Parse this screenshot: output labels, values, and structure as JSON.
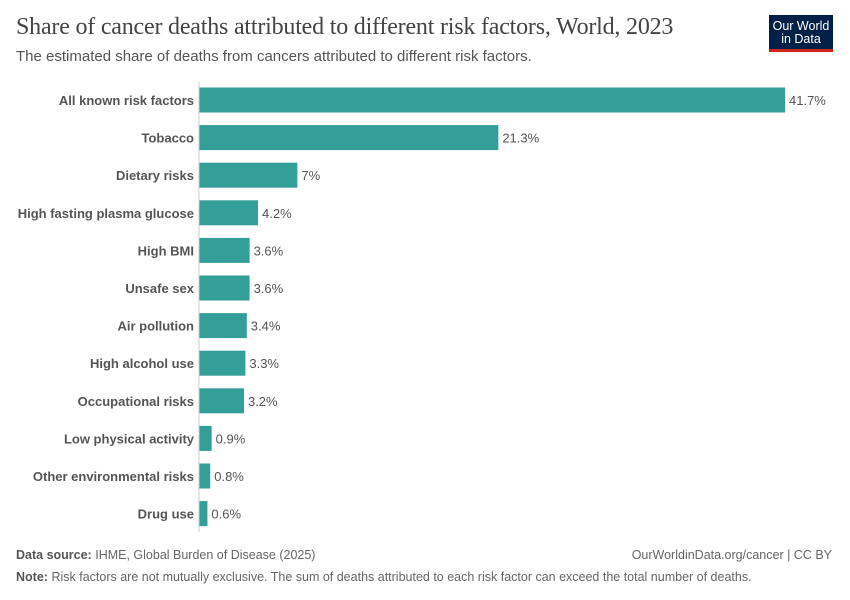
{
  "header": {
    "title": "Share of cancer deaths attributed to different risk factors, World, 2023",
    "subtitle": "The estimated share of deaths from cancers attributed to different risk factors.",
    "logo": "Our World in Data"
  },
  "chart_data": {
    "type": "bar",
    "orientation": "horizontal",
    "title": "Share of cancer deaths attributed to different risk factors, World, 2023",
    "categories": [
      "All known risk factors",
      "Tobacco",
      "Dietary risks",
      "High fasting plasma glucose",
      "High BMI",
      "Unsafe sex",
      "Air pollution",
      "High alcohol use",
      "Occupational risks",
      "Low physical activity",
      "Other environmental risks",
      "Drug use"
    ],
    "values": [
      41.7,
      21.3,
      7,
      4.2,
      3.6,
      3.6,
      3.4,
      3.3,
      3.2,
      0.9,
      0.8,
      0.6
    ],
    "labels": [
      "41.7%",
      "21.3%",
      "7%",
      "4.2%",
      "3.6%",
      "3.6%",
      "3.4%",
      "3.3%",
      "3.2%",
      "0.9%",
      "0.8%",
      "0.6%"
    ],
    "unit": "%",
    "xlim": [
      0,
      41.7
    ],
    "grid": false,
    "bar_color": "#349e98"
  },
  "footer": {
    "source_label": "Data source:",
    "source": "IHME, Global Burden of Disease (2025)",
    "url": "OurWorldinData.org/cancer | CC BY",
    "note_label": "Note:",
    "note": "Risk factors are not mutually exclusive. The sum of deaths attributed to each risk factor can exceed the total number of deaths."
  }
}
